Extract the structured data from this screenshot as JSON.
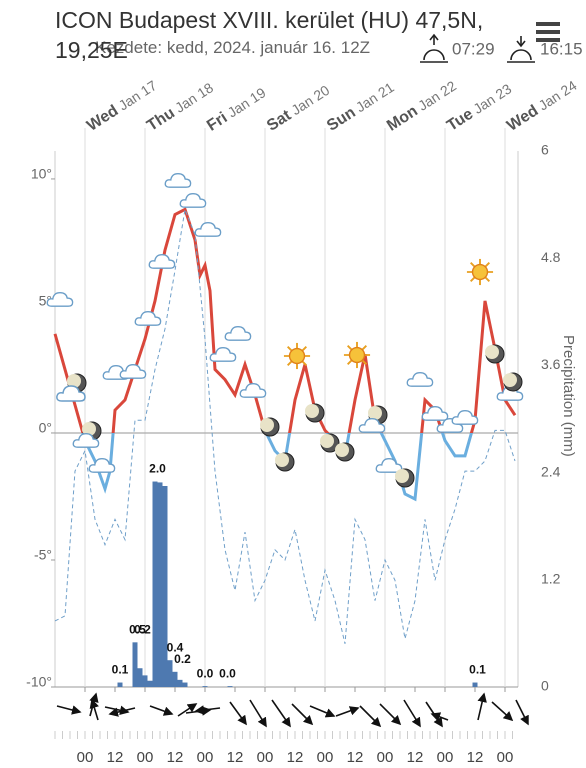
{
  "chart_data": {
    "type": "line",
    "title": "ICON Budapest XVIII. kerület (HU) 47,5N, 19,25E",
    "subtitle": "Kezdete: kedd, 2024. január 16. 12Z",
    "sunrise": "07:29",
    "sunset": "16:15",
    "y2label": "Precipitation (mm)",
    "days": [
      {
        "value": 0,
        "label": "Wed",
        "date": "Jan 17"
      },
      {
        "value": 24,
        "label": "Thu",
        "date": "Jan 18"
      },
      {
        "value": 48,
        "label": "Fri",
        "date": "Jan 19"
      },
      {
        "value": 72,
        "label": "Sat",
        "date": "Jan 20"
      },
      {
        "value": 96,
        "label": "Sun",
        "date": "Jan 21"
      },
      {
        "value": 120,
        "label": "Mon",
        "date": "Jan 22"
      },
      {
        "value": 144,
        "label": "Tue",
        "date": "Jan 23"
      },
      {
        "value": 168,
        "label": "Wed",
        "date": "Jan 24"
      }
    ],
    "xlim": [
      -12,
      173.2
    ],
    "xticks": [
      {
        "value": 0,
        "label": "00"
      },
      {
        "value": 12,
        "label": "12"
      },
      {
        "value": 24,
        "label": "00"
      },
      {
        "value": 36,
        "label": "12"
      },
      {
        "value": 48,
        "label": "00"
      },
      {
        "value": 60,
        "label": "12"
      },
      {
        "value": 72,
        "label": "00"
      },
      {
        "value": 84,
        "label": "12"
      },
      {
        "value": 96,
        "label": "00"
      },
      {
        "value": 108,
        "label": "12"
      },
      {
        "value": 120,
        "label": "00"
      },
      {
        "value": 132,
        "label": "12"
      },
      {
        "value": 144,
        "label": "00"
      },
      {
        "value": 156,
        "label": "12"
      },
      {
        "value": 168,
        "label": "00"
      }
    ],
    "ylim": [
      -10,
      11.1
    ],
    "yticks": [
      {
        "value": 10,
        "label": "10°"
      },
      {
        "value": 5,
        "label": "5°"
      },
      {
        "value": 0,
        "label": "0°"
      },
      {
        "value": -5,
        "label": "-5°"
      },
      {
        "value": -10,
        "label": "-10°"
      }
    ],
    "y2lim": [
      0,
      6
    ],
    "y2ticks": [
      6,
      4.8,
      3.6,
      2.4,
      1.2,
      0
    ],
    "series": [
      {
        "color": "#d9473b",
        "negative_color": "#6aaedf",
        "x": [
          -12,
          -8,
          -4,
          0,
          4,
          8,
          10,
          12,
          16,
          20,
          24,
          28,
          32,
          36,
          40,
          44,
          46,
          48,
          50,
          52,
          56,
          60,
          64,
          68,
          72,
          76,
          80,
          84,
          88,
          92,
          96,
          100,
          104,
          108,
          112,
          116,
          120,
          124,
          128,
          132,
          136,
          140,
          144,
          148,
          152,
          156,
          160,
          164,
          168,
          172
        ],
        "values": [
          3.9,
          2.5,
          1.1,
          -0.3,
          -1.1,
          -2.2,
          -1.5,
          0.9,
          1.3,
          2.5,
          3.7,
          5.2,
          7.2,
          8.6,
          8.8,
          7.6,
          6.2,
          6.6,
          5.6,
          2.5,
          2.1,
          1.5,
          2.7,
          1.5,
          0.1,
          -0.7,
          -1.1,
          1.3,
          2.7,
          0.9,
          0.1,
          -0.3,
          -0.9,
          1.3,
          3.1,
          0.5,
          -0.3,
          -1.1,
          -2.4,
          -2.6,
          1.3,
          0.9,
          -0.3,
          -0.9,
          -0.9,
          0.5,
          5.2,
          3.3,
          1.3,
          0.7
        ]
      },
      {
        "color": "#6f9fc9",
        "dashed": true,
        "x": [
          -12,
          -8,
          -4,
          0,
          4,
          8,
          12,
          16,
          20,
          24,
          28,
          32,
          36,
          40,
          44,
          48,
          52,
          56,
          60,
          64,
          68,
          72,
          76,
          80,
          84,
          88,
          92,
          96,
          100,
          104,
          108,
          112,
          116,
          120,
          124,
          128,
          132,
          136,
          140,
          144,
          148,
          152,
          156,
          160,
          164,
          168,
          172
        ],
        "values": [
          -7.4,
          -7.2,
          -1.5,
          -0.7,
          -3.4,
          -4.4,
          -3.4,
          -4.2,
          0.5,
          0.5,
          2.5,
          4.1,
          6.4,
          8.8,
          7.8,
          3.7,
          -1.5,
          -4.6,
          -6.2,
          -3.9,
          -6.6,
          -5.8,
          -4.6,
          -5.0,
          -3.8,
          -5.8,
          -7.4,
          -5.4,
          -6.6,
          -8.3,
          -3.4,
          -4.2,
          -6.6,
          -5.0,
          -5.8,
          -8.1,
          -6.6,
          -3.4,
          -5.8,
          -4.2,
          -3.0,
          -1.5,
          -1.5,
          -1.1,
          0.1,
          0.1,
          -1.1
        ]
      },
      {
        "type": "bar",
        "axis": "y2",
        "color": "#4e79b0",
        "x": [
          14,
          20,
          22,
          24,
          26,
          28,
          30,
          32,
          34,
          36,
          38,
          40,
          48,
          58,
          156
        ],
        "values": [
          0.05,
          0.5,
          0.21,
          0.13,
          0.07,
          2.3,
          2.29,
          2.25,
          0.3,
          0.17,
          0.08,
          0.05,
          0.01,
          0.01,
          0.05
        ]
      }
    ],
    "precip_totals": {
      "x": [
        14,
        21,
        23,
        29,
        36,
        39,
        48,
        57,
        157
      ],
      "labels": [
        "0.1",
        "0.5",
        "0.2",
        "2.0",
        "0.4",
        "0.2",
        "0.0",
        "0.0",
        "0.1"
      ]
    }
  }
}
